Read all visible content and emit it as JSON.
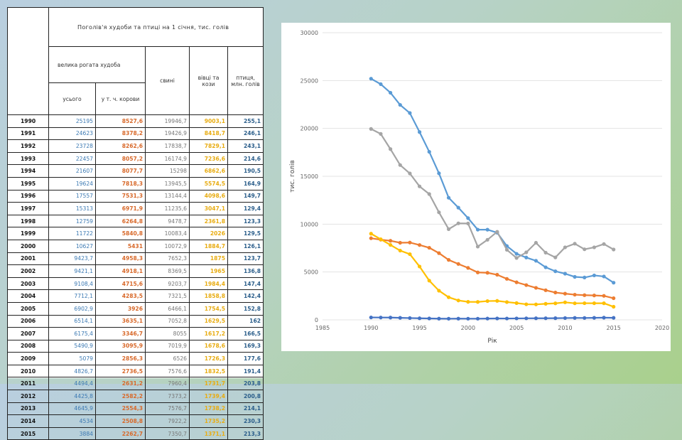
{
  "table": {
    "title": "Поголів'я худоби та птиці на 1 січня, тис. голів",
    "headers": {
      "cattle": "велика рогата худоба",
      "total": "усього",
      "cows": "у т. ч. корови",
      "pigs": "свині",
      "sheep": "вівці та кози",
      "poultry": "птиця, млн. голів"
    },
    "rows": [
      {
        "year": "1990",
        "total": "25195",
        "cows": "8527,6",
        "pigs": "19946,7",
        "sheep": "9003,1",
        "poultry": "255,1"
      },
      {
        "year": "1991",
        "total": "24623",
        "cows": "8378,2",
        "pigs": "19426,9",
        "sheep": "8418,7",
        "poultry": "246,1"
      },
      {
        "year": "1992",
        "total": "23728",
        "cows": "8262,6",
        "pigs": "17838,7",
        "sheep": "7829,1",
        "poultry": "243,1"
      },
      {
        "year": "1993",
        "total": "22457",
        "cows": "8057,2",
        "pigs": "16174,9",
        "sheep": "7236,6",
        "poultry": "214,6"
      },
      {
        "year": "1994",
        "total": "21607",
        "cows": "8077,7",
        "pigs": "15298",
        "sheep": "6862,6",
        "poultry": "190,5"
      },
      {
        "year": "1995",
        "total": "19624",
        "cows": "7818,3",
        "pigs": "13945,5",
        "sheep": "5574,5",
        "poultry": "164,9"
      },
      {
        "year": "1996",
        "total": "17557",
        "cows": "7531,3",
        "pigs": "13144,4",
        "sheep": "4098,6",
        "poultry": "149,7"
      },
      {
        "year": "1997",
        "total": "15313",
        "cows": "6971,9",
        "pigs": "11235,6",
        "sheep": "3047,1",
        "poultry": "129,4"
      },
      {
        "year": "1998",
        "total": "12759",
        "cows": "6264,8",
        "pigs": "9478,7",
        "sheep": "2361,8",
        "poultry": "123,3"
      },
      {
        "year": "1999",
        "total": "11722",
        "cows": "5840,8",
        "pigs": "10083,4",
        "sheep": "2026",
        "poultry": "129,5"
      },
      {
        "year": "2000",
        "total": "10627",
        "cows": "5431",
        "pigs": "10072,9",
        "sheep": "1884,7",
        "poultry": "126,1"
      },
      {
        "year": "2001",
        "total": "9423,7",
        "cows": "4958,3",
        "pigs": "7652,3",
        "sheep": "1875",
        "poultry": "123,7"
      },
      {
        "year": "2002",
        "total": "9421,1",
        "cows": "4918,1",
        "pigs": "8369,5",
        "sheep": "1965",
        "poultry": "136,8"
      },
      {
        "year": "2003",
        "total": "9108,4",
        "cows": "4715,6",
        "pigs": "9203,7",
        "sheep": "1984,4",
        "poultry": "147,4"
      },
      {
        "year": "2004",
        "total": "7712,1",
        "cows": "4283,5",
        "pigs": "7321,5",
        "sheep": "1858,8",
        "poultry": "142,4"
      },
      {
        "year": "2005",
        "total": "6902,9",
        "cows": "3926",
        "pigs": "6466,1",
        "sheep": "1754,5",
        "poultry": "152,8"
      },
      {
        "year": "2006",
        "total": "6514,1",
        "cows": "3635,1",
        "pigs": "7052,8",
        "sheep": "1629,5",
        "poultry": "162"
      },
      {
        "year": "2007",
        "total": "6175,4",
        "cows": "3346,7",
        "pigs": "8055",
        "sheep": "1617,2",
        "poultry": "166,5"
      },
      {
        "year": "2008",
        "total": "5490,9",
        "cows": "3095,9",
        "pigs": "7019,9",
        "sheep": "1678,6",
        "poultry": "169,3"
      },
      {
        "year": "2009",
        "total": "5079",
        "cows": "2856,3",
        "pigs": "6526",
        "sheep": "1726,3",
        "poultry": "177,6"
      },
      {
        "year": "2010",
        "total": "4826,7",
        "cows": "2736,5",
        "pigs": "7576,6",
        "sheep": "1832,5",
        "poultry": "191,4"
      },
      {
        "year": "2011",
        "total": "4494,4",
        "cows": "2631,2",
        "pigs": "7960,4",
        "sheep": "1731,7",
        "poultry": "203,8"
      },
      {
        "year": "2012",
        "total": "4425,8",
        "cows": "2582,2",
        "pigs": "7373,2",
        "sheep": "1739,4",
        "poultry": "200,8"
      },
      {
        "year": "2013",
        "total": "4645,9",
        "cows": "2554,3",
        "pigs": "7576,7",
        "sheep": "1738,2",
        "poultry": "214,1"
      },
      {
        "year": "2014",
        "total": "4534",
        "cows": "2508,8",
        "pigs": "7922,2",
        "sheep": "1735,2",
        "poultry": "230,3"
      },
      {
        "year": "2015",
        "total": "3884",
        "cows": "2262,7",
        "pigs": "7350,7",
        "sheep": "1371,1",
        "poultry": "213,3"
      }
    ]
  },
  "chart_data": {
    "type": "scatter",
    "mode": "lines+markers",
    "xlabel": "Рік",
    "ylabel": "тис. голів",
    "xlim": [
      1985,
      2020
    ],
    "ylim": [
      0,
      30000
    ],
    "xticks": [
      "1985",
      "1990",
      "1995",
      "2000",
      "2005",
      "2010",
      "2015",
      "2020"
    ],
    "yticks": [
      "0",
      "5000",
      "10000",
      "15000",
      "20000",
      "25000",
      "30000"
    ],
    "x": [
      1990,
      1991,
      1992,
      1993,
      1994,
      1995,
      1996,
      1997,
      1998,
      1999,
      2000,
      2001,
      2002,
      2003,
      2004,
      2005,
      2006,
      2007,
      2008,
      2009,
      2010,
      2011,
      2012,
      2013,
      2014,
      2015
    ],
    "series": [
      {
        "name": "усього",
        "color": "#5b9bd5",
        "values": [
          25195,
          24623,
          23728,
          22457,
          21607,
          19624,
          17557,
          15313,
          12759,
          11722,
          10627,
          9423.7,
          9421.1,
          9108.4,
          7712.1,
          6902.9,
          6514.1,
          6175.4,
          5490.9,
          5079,
          4826.7,
          4494.4,
          4425.8,
          4645.9,
          4534,
          3884
        ]
      },
      {
        "name": "у т. ч. корови",
        "color": "#ed7d31",
        "values": [
          8527.6,
          8378.2,
          8262.6,
          8057.2,
          8077.7,
          7818.3,
          7531.3,
          6971.9,
          6264.8,
          5840.8,
          5431,
          4958.3,
          4918.1,
          4715.6,
          4283.5,
          3926,
          3635.1,
          3346.7,
          3095.9,
          2856.3,
          2736.5,
          2631.2,
          2582.2,
          2554.3,
          2508.8,
          2262.7
        ]
      },
      {
        "name": "свині",
        "color": "#a5a5a5",
        "values": [
          19946.7,
          19426.9,
          17838.7,
          16174.9,
          15298,
          13945.5,
          13144.4,
          11235.6,
          9478.7,
          10083.4,
          10072.9,
          7652.3,
          8369.5,
          9203.7,
          7321.5,
          6466.1,
          7052.8,
          8055,
          7019.9,
          6526,
          7576.6,
          7960.4,
          7373.2,
          7576.7,
          7922.2,
          7350.7
        ]
      },
      {
        "name": "вівці та кози",
        "color": "#ffc000",
        "values": [
          9003.1,
          8418.7,
          7829.1,
          7236.6,
          6862.6,
          5574.5,
          4098.6,
          3047.1,
          2361.8,
          2026,
          1884.7,
          1875,
          1965,
          1984.4,
          1858.8,
          1754.5,
          1629.5,
          1617.2,
          1678.6,
          1726.3,
          1832.5,
          1731.7,
          1739.4,
          1738.2,
          1735.2,
          1371.1
        ]
      },
      {
        "name": "птиця, млн. голів",
        "color": "#4472c4",
        "values": [
          255.1,
          246.1,
          243.1,
          214.6,
          190.5,
          164.9,
          149.7,
          129.4,
          123.3,
          129.5,
          126.1,
          123.7,
          136.8,
          147.4,
          142.4,
          152.8,
          162,
          166.5,
          169.3,
          177.6,
          191.4,
          203.8,
          200.8,
          214.1,
          230.3,
          213.3
        ]
      }
    ]
  }
}
